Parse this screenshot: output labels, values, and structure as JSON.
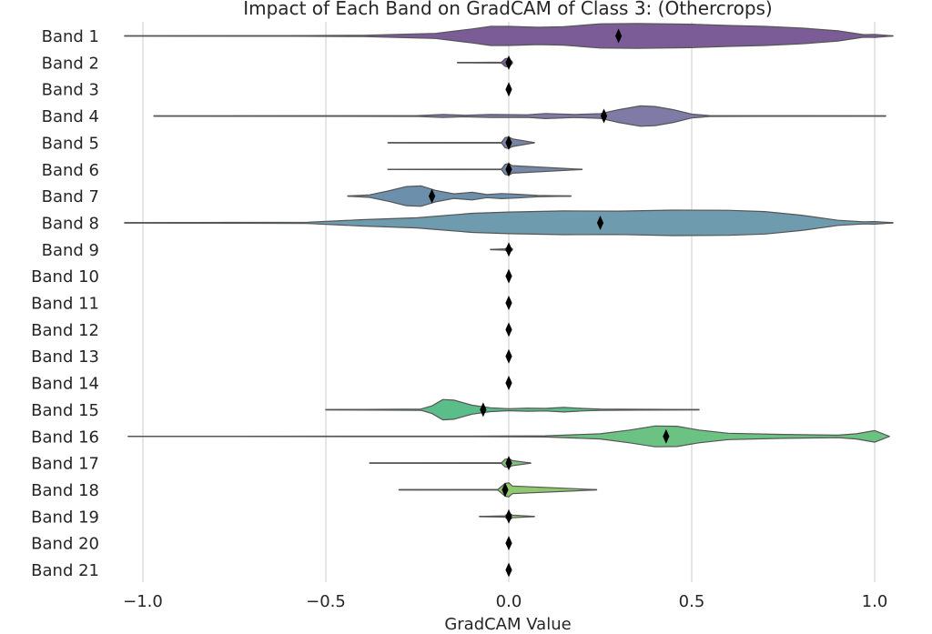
{
  "chart_data": {
    "type": "violin",
    "title": "Impact of Each Band on GradCAM of Class 3: (Othercrops)",
    "xlabel": "GradCAM Value",
    "ylabel": "",
    "xlim": [
      -1.1,
      1.05
    ],
    "xticks": [
      -1.0,
      -0.5,
      0.0,
      0.5,
      1.0
    ],
    "xtick_labels": [
      "−1.0",
      "−0.5",
      "0.0",
      "0.5",
      "1.0"
    ],
    "grid": "vertical",
    "categories": [
      "Band 1",
      "Band 2",
      "Band 3",
      "Band 4",
      "Band 5",
      "Band 6",
      "Band 7",
      "Band 8",
      "Band 9",
      "Band 10",
      "Band 11",
      "Band 12",
      "Band 13",
      "Band 14",
      "Band 15",
      "Band 16",
      "Band 17",
      "Band 18",
      "Band 19",
      "Band 20",
      "Band 21"
    ],
    "series": [
      {
        "band": "Band 1",
        "min": -1.05,
        "max": 1.05,
        "mean": 0.3,
        "color": "#7b5c96",
        "density": [
          [
            -1.05,
            0.01
          ],
          [
            -0.6,
            0.02
          ],
          [
            -0.4,
            0.05
          ],
          [
            -0.2,
            0.2
          ],
          [
            -0.1,
            0.55
          ],
          [
            -0.05,
            0.75
          ],
          [
            0.0,
            0.75
          ],
          [
            0.08,
            0.68
          ],
          [
            0.15,
            0.72
          ],
          [
            0.25,
            0.95
          ],
          [
            0.35,
            0.98
          ],
          [
            0.5,
            0.92
          ],
          [
            0.6,
            0.82
          ],
          [
            0.7,
            0.75
          ],
          [
            0.8,
            0.62
          ],
          [
            0.9,
            0.4
          ],
          [
            0.97,
            0.1
          ],
          [
            1.0,
            0.12
          ],
          [
            1.05,
            0.01
          ]
        ]
      },
      {
        "band": "Band 2",
        "min": -0.14,
        "max": 0.01,
        "mean": 0.0,
        "color": "#7a5f95",
        "density": [
          [
            -0.14,
            0.01
          ],
          [
            -0.02,
            0.03
          ],
          [
            -0.01,
            0.3
          ],
          [
            0.0,
            0.35
          ],
          [
            0.01,
            0.05
          ]
        ]
      },
      {
        "band": "Band 3",
        "min": 0.0,
        "max": 0.0,
        "mean": 0.0,
        "color": "#7a6697",
        "density": []
      },
      {
        "band": "Band 4",
        "min": -0.97,
        "max": 1.03,
        "mean": 0.26,
        "color": "#7f7aa6",
        "density": [
          [
            -0.97,
            0.01
          ],
          [
            -0.25,
            0.03
          ],
          [
            -0.18,
            0.12
          ],
          [
            -0.12,
            0.06
          ],
          [
            -0.05,
            0.12
          ],
          [
            0.05,
            0.1
          ],
          [
            0.1,
            0.2
          ],
          [
            0.18,
            0.12
          ],
          [
            0.25,
            0.18
          ],
          [
            0.3,
            0.5
          ],
          [
            0.36,
            0.8
          ],
          [
            0.4,
            0.75
          ],
          [
            0.45,
            0.5
          ],
          [
            0.5,
            0.15
          ],
          [
            0.55,
            0.03
          ],
          [
            1.03,
            0.01
          ]
        ]
      },
      {
        "band": "Band 5",
        "min": -0.33,
        "max": 0.07,
        "mean": 0.0,
        "color": "#7786a6",
        "density": [
          [
            -0.33,
            0.01
          ],
          [
            -0.02,
            0.02
          ],
          [
            -0.01,
            0.4
          ],
          [
            0.0,
            0.45
          ],
          [
            0.01,
            0.3
          ],
          [
            0.07,
            0.01
          ]
        ]
      },
      {
        "band": "Band 6",
        "min": -0.33,
        "max": 0.2,
        "mean": 0.0,
        "color": "#7588a7",
        "density": [
          [
            -0.33,
            0.01
          ],
          [
            -0.02,
            0.02
          ],
          [
            -0.01,
            0.4
          ],
          [
            0.0,
            0.45
          ],
          [
            0.01,
            0.3
          ],
          [
            0.2,
            0.01
          ]
        ]
      },
      {
        "band": "Band 7",
        "min": -0.44,
        "max": 0.17,
        "mean": -0.21,
        "color": "#6c8fac",
        "density": [
          [
            -0.44,
            0.01
          ],
          [
            -0.38,
            0.1
          ],
          [
            -0.33,
            0.4
          ],
          [
            -0.28,
            0.75
          ],
          [
            -0.24,
            0.8
          ],
          [
            -0.2,
            0.45
          ],
          [
            -0.15,
            0.18
          ],
          [
            -0.1,
            0.3
          ],
          [
            -0.06,
            0.12
          ],
          [
            -0.02,
            0.2
          ],
          [
            0.02,
            0.15
          ],
          [
            0.08,
            0.05
          ],
          [
            0.17,
            0.01
          ]
        ]
      },
      {
        "band": "Band 8",
        "min": -1.05,
        "max": 1.05,
        "mean": 0.25,
        "color": "#6f9bae",
        "density": [
          [
            -1.05,
            0.01
          ],
          [
            -0.55,
            0.05
          ],
          [
            -0.4,
            0.25
          ],
          [
            -0.25,
            0.4
          ],
          [
            -0.1,
            0.75
          ],
          [
            0.0,
            0.85
          ],
          [
            0.15,
            0.93
          ],
          [
            0.3,
            0.92
          ],
          [
            0.45,
            1.0
          ],
          [
            0.6,
            0.98
          ],
          [
            0.7,
            0.88
          ],
          [
            0.8,
            0.6
          ],
          [
            0.9,
            0.2
          ],
          [
            0.97,
            0.08
          ],
          [
            1.0,
            0.1
          ],
          [
            1.05,
            0.01
          ]
        ]
      },
      {
        "band": "Band 9",
        "min": -0.05,
        "max": 0.01,
        "mean": 0.0,
        "color": "#6ca6ad",
        "density": [
          [
            -0.05,
            0.01
          ],
          [
            -0.01,
            0.05
          ],
          [
            0.0,
            0.25
          ],
          [
            0.01,
            0.05
          ]
        ]
      },
      {
        "band": "Band 10",
        "min": 0.0,
        "max": 0.0,
        "mean": 0.0,
        "color": "#68acad",
        "density": []
      },
      {
        "band": "Band 11",
        "min": 0.0,
        "max": 0.0,
        "mean": 0.0,
        "color": "#63b0ab",
        "density": []
      },
      {
        "band": "Band 12",
        "min": 0.0,
        "max": 0.0,
        "mean": 0.0,
        "color": "#5fb4a8",
        "density": []
      },
      {
        "band": "Band 13",
        "min": 0.0,
        "max": 0.0,
        "mean": 0.0,
        "color": "#5db8a2",
        "density": []
      },
      {
        "band": "Band 14",
        "min": 0.0,
        "max": 0.0,
        "mean": 0.0,
        "color": "#5cbb9c",
        "density": []
      },
      {
        "band": "Band 15",
        "min": -0.5,
        "max": 0.52,
        "mean": -0.07,
        "color": "#5bbd8a",
        "density": [
          [
            -0.5,
            0.01
          ],
          [
            -0.24,
            0.05
          ],
          [
            -0.21,
            0.3
          ],
          [
            -0.18,
            0.8
          ],
          [
            -0.15,
            0.75
          ],
          [
            -0.1,
            0.35
          ],
          [
            -0.05,
            0.15
          ],
          [
            0.0,
            0.08
          ],
          [
            0.05,
            0.12
          ],
          [
            0.1,
            0.1
          ],
          [
            0.15,
            0.18
          ],
          [
            0.2,
            0.1
          ],
          [
            0.25,
            0.05
          ],
          [
            0.52,
            0.01
          ]
        ]
      },
      {
        "band": "Band 16",
        "min": -1.04,
        "max": 1.04,
        "mean": 0.43,
        "color": "#6cc283",
        "density": [
          [
            -1.04,
            0.01
          ],
          [
            -0.1,
            0.02
          ],
          [
            0.1,
            0.05
          ],
          [
            0.25,
            0.2
          ],
          [
            0.33,
            0.5
          ],
          [
            0.4,
            0.82
          ],
          [
            0.46,
            0.8
          ],
          [
            0.52,
            0.5
          ],
          [
            0.6,
            0.25
          ],
          [
            0.75,
            0.15
          ],
          [
            0.9,
            0.1
          ],
          [
            0.95,
            0.2
          ],
          [
            1.0,
            0.45
          ],
          [
            1.04,
            0.01
          ]
        ]
      },
      {
        "band": "Band 17",
        "min": -0.38,
        "max": 0.06,
        "mean": 0.0,
        "color": "#7ec47a",
        "density": [
          [
            -0.38,
            0.01
          ],
          [
            -0.02,
            0.02
          ],
          [
            -0.01,
            0.3
          ],
          [
            0.0,
            0.35
          ],
          [
            0.01,
            0.2
          ],
          [
            0.06,
            0.01
          ]
        ]
      },
      {
        "band": "Band 18",
        "min": -0.3,
        "max": 0.24,
        "mean": -0.01,
        "color": "#8fc86f",
        "density": [
          [
            -0.3,
            0.01
          ],
          [
            -0.03,
            0.02
          ],
          [
            -0.01,
            0.5
          ],
          [
            0.0,
            0.55
          ],
          [
            0.01,
            0.3
          ],
          [
            0.24,
            0.01
          ]
        ]
      },
      {
        "band": "Band 19",
        "min": -0.08,
        "max": 0.07,
        "mean": 0.0,
        "color": "#a0cd66",
        "density": [
          [
            -0.08,
            0.01
          ],
          [
            -0.01,
            0.05
          ],
          [
            0.0,
            0.3
          ],
          [
            0.01,
            0.1
          ],
          [
            0.07,
            0.01
          ]
        ]
      },
      {
        "band": "Band 20",
        "min": 0.0,
        "max": 0.0,
        "mean": 0.0,
        "color": "#b3d15d",
        "density": []
      },
      {
        "band": "Band 21",
        "min": 0.0,
        "max": 0.0,
        "mean": 0.0,
        "color": "#c4d554",
        "density": []
      }
    ]
  }
}
